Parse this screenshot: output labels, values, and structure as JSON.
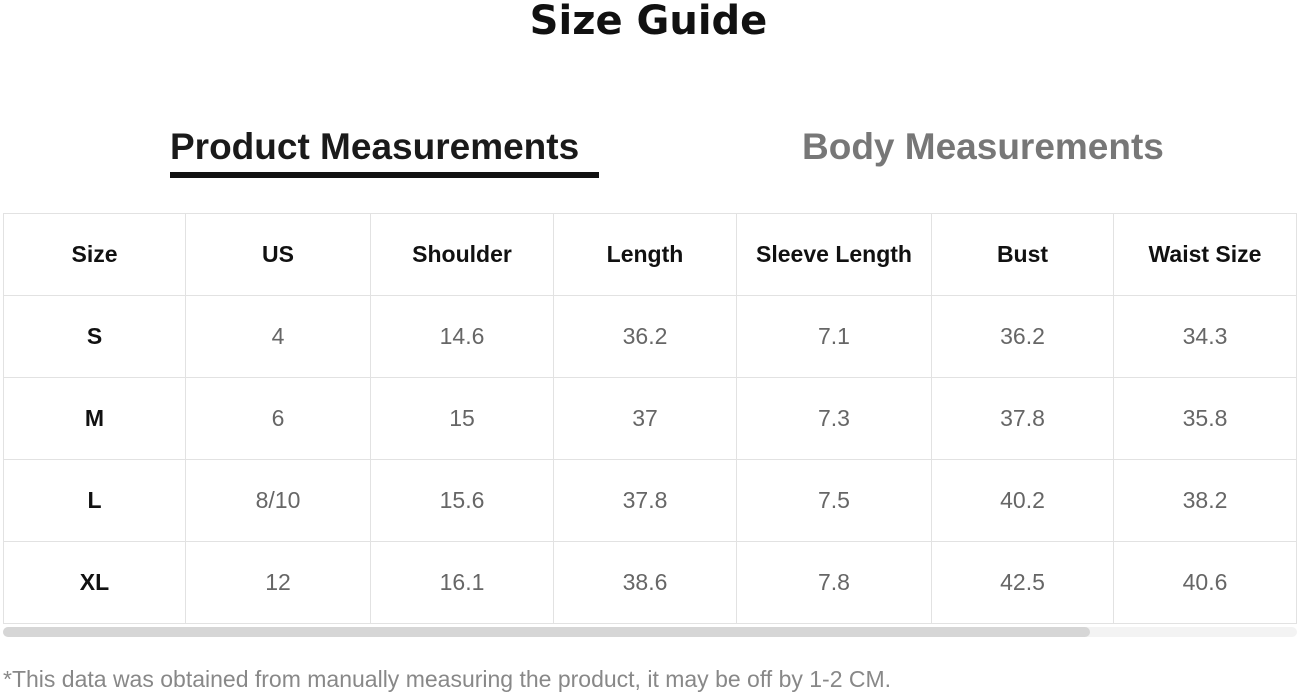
{
  "title": "Size Guide",
  "tabs": [
    {
      "label": "Product Measurements",
      "active": true
    },
    {
      "label": "Body Measurements",
      "active": false
    }
  ],
  "table": {
    "headers": [
      "Size",
      "US",
      "Shoulder",
      "Length",
      "Sleeve Length",
      "Bust",
      "Waist Size"
    ],
    "rows": [
      [
        "S",
        "4",
        "14.6",
        "36.2",
        "7.1",
        "36.2",
        "34.3"
      ],
      [
        "M",
        "6",
        "15",
        "37",
        "7.3",
        "37.8",
        "35.8"
      ],
      [
        "L",
        "8/10",
        "15.6",
        "37.8",
        "7.5",
        "40.2",
        "38.2"
      ],
      [
        "XL",
        "12",
        "16.1",
        "38.6",
        "7.8",
        "42.5",
        "40.6"
      ]
    ]
  },
  "footnote": "*This data was obtained from manually measuring the product, it may be off by 1-2 CM."
}
